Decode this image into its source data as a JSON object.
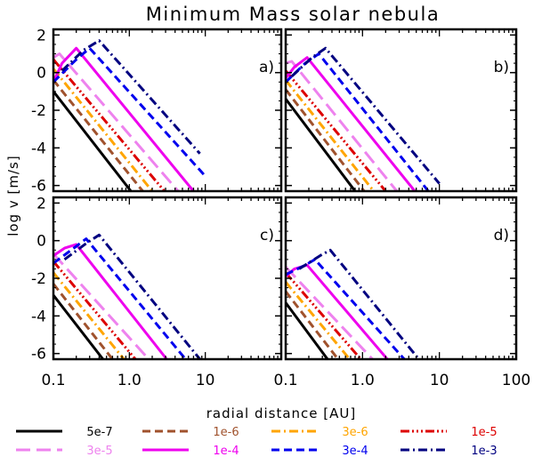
{
  "title": "Minimum Mass solar nebula",
  "chart_data": {
    "type": "line",
    "title": "Minimum Mass solar nebula",
    "xlabel": "radial distance [AU]",
    "ylabel": "log v [m/s]",
    "xscale": "log",
    "xlim": [
      0.1,
      100
    ],
    "ylim": [
      -6.3,
      2.3
    ],
    "xticks": [
      0.1,
      1.0,
      10,
      100
    ],
    "xtick_labels_left": [
      "0.1",
      "1.0",
      "10"
    ],
    "xtick_labels_right": [
      "0.1",
      "1.0",
      "10",
      "100"
    ],
    "yticks": [
      -6,
      -4,
      -2,
      0,
      2
    ],
    "ytick_labels": [
      "-6",
      "-4",
      "-2",
      "0",
      "2"
    ],
    "series": [
      {
        "name": "5e-7",
        "color": "#000000",
        "dash": "solid"
      },
      {
        "name": "1e-6",
        "color": "#a0522d",
        "dash": "dashed"
      },
      {
        "name": "3e-6",
        "color": "#ffa500",
        "dash": "dashdot"
      },
      {
        "name": "1e-5",
        "color": "#dd0000",
        "dash": "dashdotdotdot"
      },
      {
        "name": "3e-5",
        "color": "#ee82ee",
        "dash": "longdash"
      },
      {
        "name": "1e-4",
        "color": "#ee00ee",
        "dash": "solid"
      },
      {
        "name": "3e-4",
        "color": "#0000ee",
        "dash": "dashed"
      },
      {
        "name": "1e-3",
        "color": "#000080",
        "dash": "dashdot"
      }
    ],
    "panels": [
      {
        "label": "a)",
        "curves": [
          {
            "series": "5e-7",
            "points": [
              [
                0.1,
                -1.0
              ],
              [
                1.05,
                -6.3
              ]
            ]
          },
          {
            "series": "1e-6",
            "points": [
              [
                0.1,
                -0.4
              ],
              [
                1.5,
                -6.3
              ]
            ]
          },
          {
            "series": "3e-6",
            "points": [
              [
                0.1,
                0.2
              ],
              [
                2.0,
                -6.3
              ]
            ]
          },
          {
            "series": "1e-5",
            "points": [
              [
                0.1,
                0.7
              ],
              [
                2.9,
                -6.3
              ]
            ]
          },
          {
            "series": "3e-5",
            "points": [
              [
                0.1,
                0.8
              ],
              [
                0.12,
                1.0
              ],
              [
                4.4,
                -6.3
              ]
            ]
          },
          {
            "series": "1e-4",
            "points": [
              [
                0.1,
                -0.5
              ],
              [
                0.13,
                0.5
              ],
              [
                0.2,
                1.3
              ],
              [
                7.0,
                -6.3
              ]
            ]
          },
          {
            "series": "3e-4",
            "points": [
              [
                0.1,
                -0.5
              ],
              [
                0.2,
                0.7
              ],
              [
                0.3,
                1.3
              ],
              [
                10.0,
                -5.5
              ]
            ]
          },
          {
            "series": "1e-3",
            "points": [
              [
                0.13,
                0.1
              ],
              [
                0.25,
                1.2
              ],
              [
                0.4,
                1.7
              ],
              [
                8.5,
                -4.3
              ]
            ]
          }
        ]
      },
      {
        "label": "b)",
        "curves": [
          {
            "series": "5e-7",
            "points": [
              [
                0.1,
                -1.4
              ],
              [
                0.8,
                -6.3
              ]
            ]
          },
          {
            "series": "1e-6",
            "points": [
              [
                0.1,
                -0.9
              ],
              [
                1.05,
                -6.3
              ]
            ]
          },
          {
            "series": "3e-6",
            "points": [
              [
                0.1,
                -0.4
              ],
              [
                1.4,
                -6.3
              ]
            ]
          },
          {
            "series": "1e-5",
            "points": [
              [
                0.1,
                0.1
              ],
              [
                2.0,
                -6.3
              ]
            ]
          },
          {
            "series": "3e-5",
            "points": [
              [
                0.1,
                0.5
              ],
              [
                0.12,
                0.6
              ],
              [
                2.8,
                -6.3
              ]
            ]
          },
          {
            "series": "1e-4",
            "points": [
              [
                0.1,
                -0.3
              ],
              [
                0.13,
                0.3
              ],
              [
                0.19,
                0.8
              ],
              [
                4.8,
                -6.3
              ]
            ]
          },
          {
            "series": "3e-4",
            "points": [
              [
                0.1,
                -0.5
              ],
              [
                0.18,
                0.5
              ],
              [
                0.27,
                1.0
              ],
              [
                7.2,
                -6.3
              ]
            ]
          },
          {
            "series": "1e-3",
            "points": [
              [
                0.12,
                -0.2
              ],
              [
                0.22,
                0.8
              ],
              [
                0.33,
                1.3
              ],
              [
                10.0,
                -5.9
              ]
            ]
          }
        ]
      },
      {
        "label": "c)",
        "curves": [
          {
            "series": "5e-7",
            "points": [
              [
                0.1,
                -2.9
              ],
              [
                0.45,
                -6.3
              ]
            ]
          },
          {
            "series": "1e-6",
            "points": [
              [
                0.1,
                -2.3
              ],
              [
                0.6,
                -6.3
              ]
            ]
          },
          {
            "series": "3e-6",
            "points": [
              [
                0.1,
                -1.7
              ],
              [
                0.85,
                -6.3
              ]
            ]
          },
          {
            "series": "1e-5",
            "points": [
              [
                0.1,
                -1.1
              ],
              [
                1.2,
                -6.3
              ]
            ]
          },
          {
            "series": "3e-5",
            "points": [
              [
                0.1,
                -0.7
              ],
              [
                1.8,
                -6.3
              ]
            ]
          },
          {
            "series": "1e-4",
            "points": [
              [
                0.1,
                -0.8
              ],
              [
                0.14,
                -0.4
              ],
              [
                0.2,
                -0.2
              ],
              [
                3.1,
                -6.3
              ]
            ]
          },
          {
            "series": "3e-4",
            "points": [
              [
                0.1,
                -1.2
              ],
              [
                0.2,
                -0.3
              ],
              [
                0.27,
                0.1
              ],
              [
                5.5,
                -6.3
              ]
            ]
          },
          {
            "series": "1e-3",
            "points": [
              [
                0.14,
                -1.0
              ],
              [
                0.28,
                -0.1
              ],
              [
                0.4,
                0.3
              ],
              [
                8.5,
                -6.3
              ]
            ]
          }
        ]
      },
      {
        "label": "d)",
        "curves": [
          {
            "series": "5e-7",
            "points": [
              [
                0.1,
                -3.3
              ],
              [
                0.35,
                -6.3
              ]
            ]
          },
          {
            "series": "1e-6",
            "points": [
              [
                0.1,
                -2.7
              ],
              [
                0.48,
                -6.3
              ]
            ]
          },
          {
            "series": "3e-6",
            "points": [
              [
                0.1,
                -2.2
              ],
              [
                0.68,
                -6.3
              ]
            ]
          },
          {
            "series": "1e-5",
            "points": [
              [
                0.1,
                -1.7
              ],
              [
                0.95,
                -6.3
              ]
            ]
          },
          {
            "series": "3e-5",
            "points": [
              [
                0.1,
                -1.4
              ],
              [
                1.35,
                -6.3
              ]
            ]
          },
          {
            "series": "1e-4",
            "points": [
              [
                0.1,
                -1.9
              ],
              [
                0.13,
                -1.5
              ],
              [
                0.19,
                -1.3
              ],
              [
                2.1,
                -6.3
              ]
            ]
          },
          {
            "series": "3e-4",
            "points": [
              [
                0.1,
                -1.8
              ],
              [
                0.18,
                -1.3
              ],
              [
                0.24,
                -1.0
              ],
              [
                3.5,
                -6.3
              ]
            ]
          },
          {
            "series": "1e-3",
            "points": [
              [
                0.15,
                -1.5
              ],
              [
                0.28,
                -0.8
              ],
              [
                0.38,
                -0.5
              ],
              [
                5.4,
                -6.3
              ]
            ]
          }
        ]
      }
    ],
    "legend_position": "bottom"
  }
}
